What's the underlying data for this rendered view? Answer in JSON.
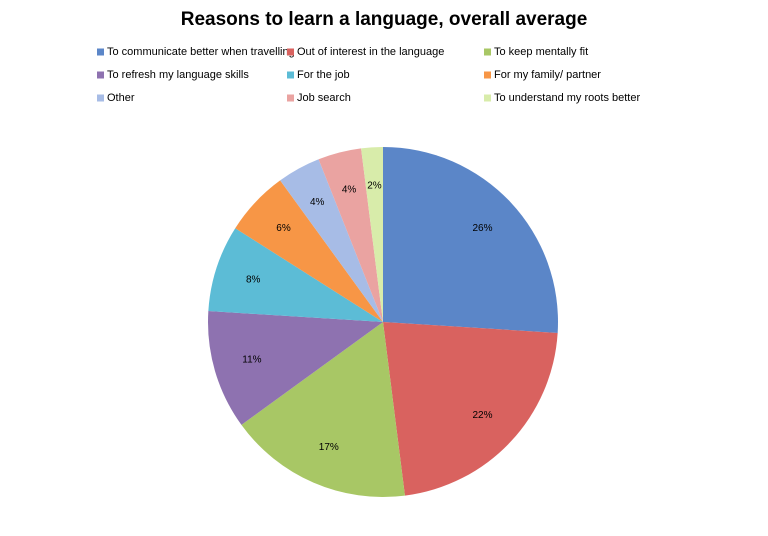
{
  "chart_data": {
    "type": "pie",
    "title": "Reasons to learn a language, overall average",
    "categories": [
      "To communicate better when travelling",
      "Out of interest in the language",
      "To keep mentally fit",
      "To refresh my language skills",
      "For the job",
      "For my family/ partner",
      "Other",
      "Job search",
      "To understand my roots better"
    ],
    "values": [
      26,
      22,
      17,
      11,
      8,
      6,
      4,
      4,
      2
    ],
    "value_labels": [
      "26%",
      "22%",
      "17%",
      "11%",
      "8%",
      "6%",
      "4%",
      "4%",
      "2%"
    ],
    "colors": [
      "#5b86c8",
      "#d9625f",
      "#a8c765",
      "#8e72b0",
      "#5cbcd6",
      "#f79646",
      "#a7bce6",
      "#eaa3a1",
      "#d8ecaa"
    ],
    "legend": "top"
  }
}
